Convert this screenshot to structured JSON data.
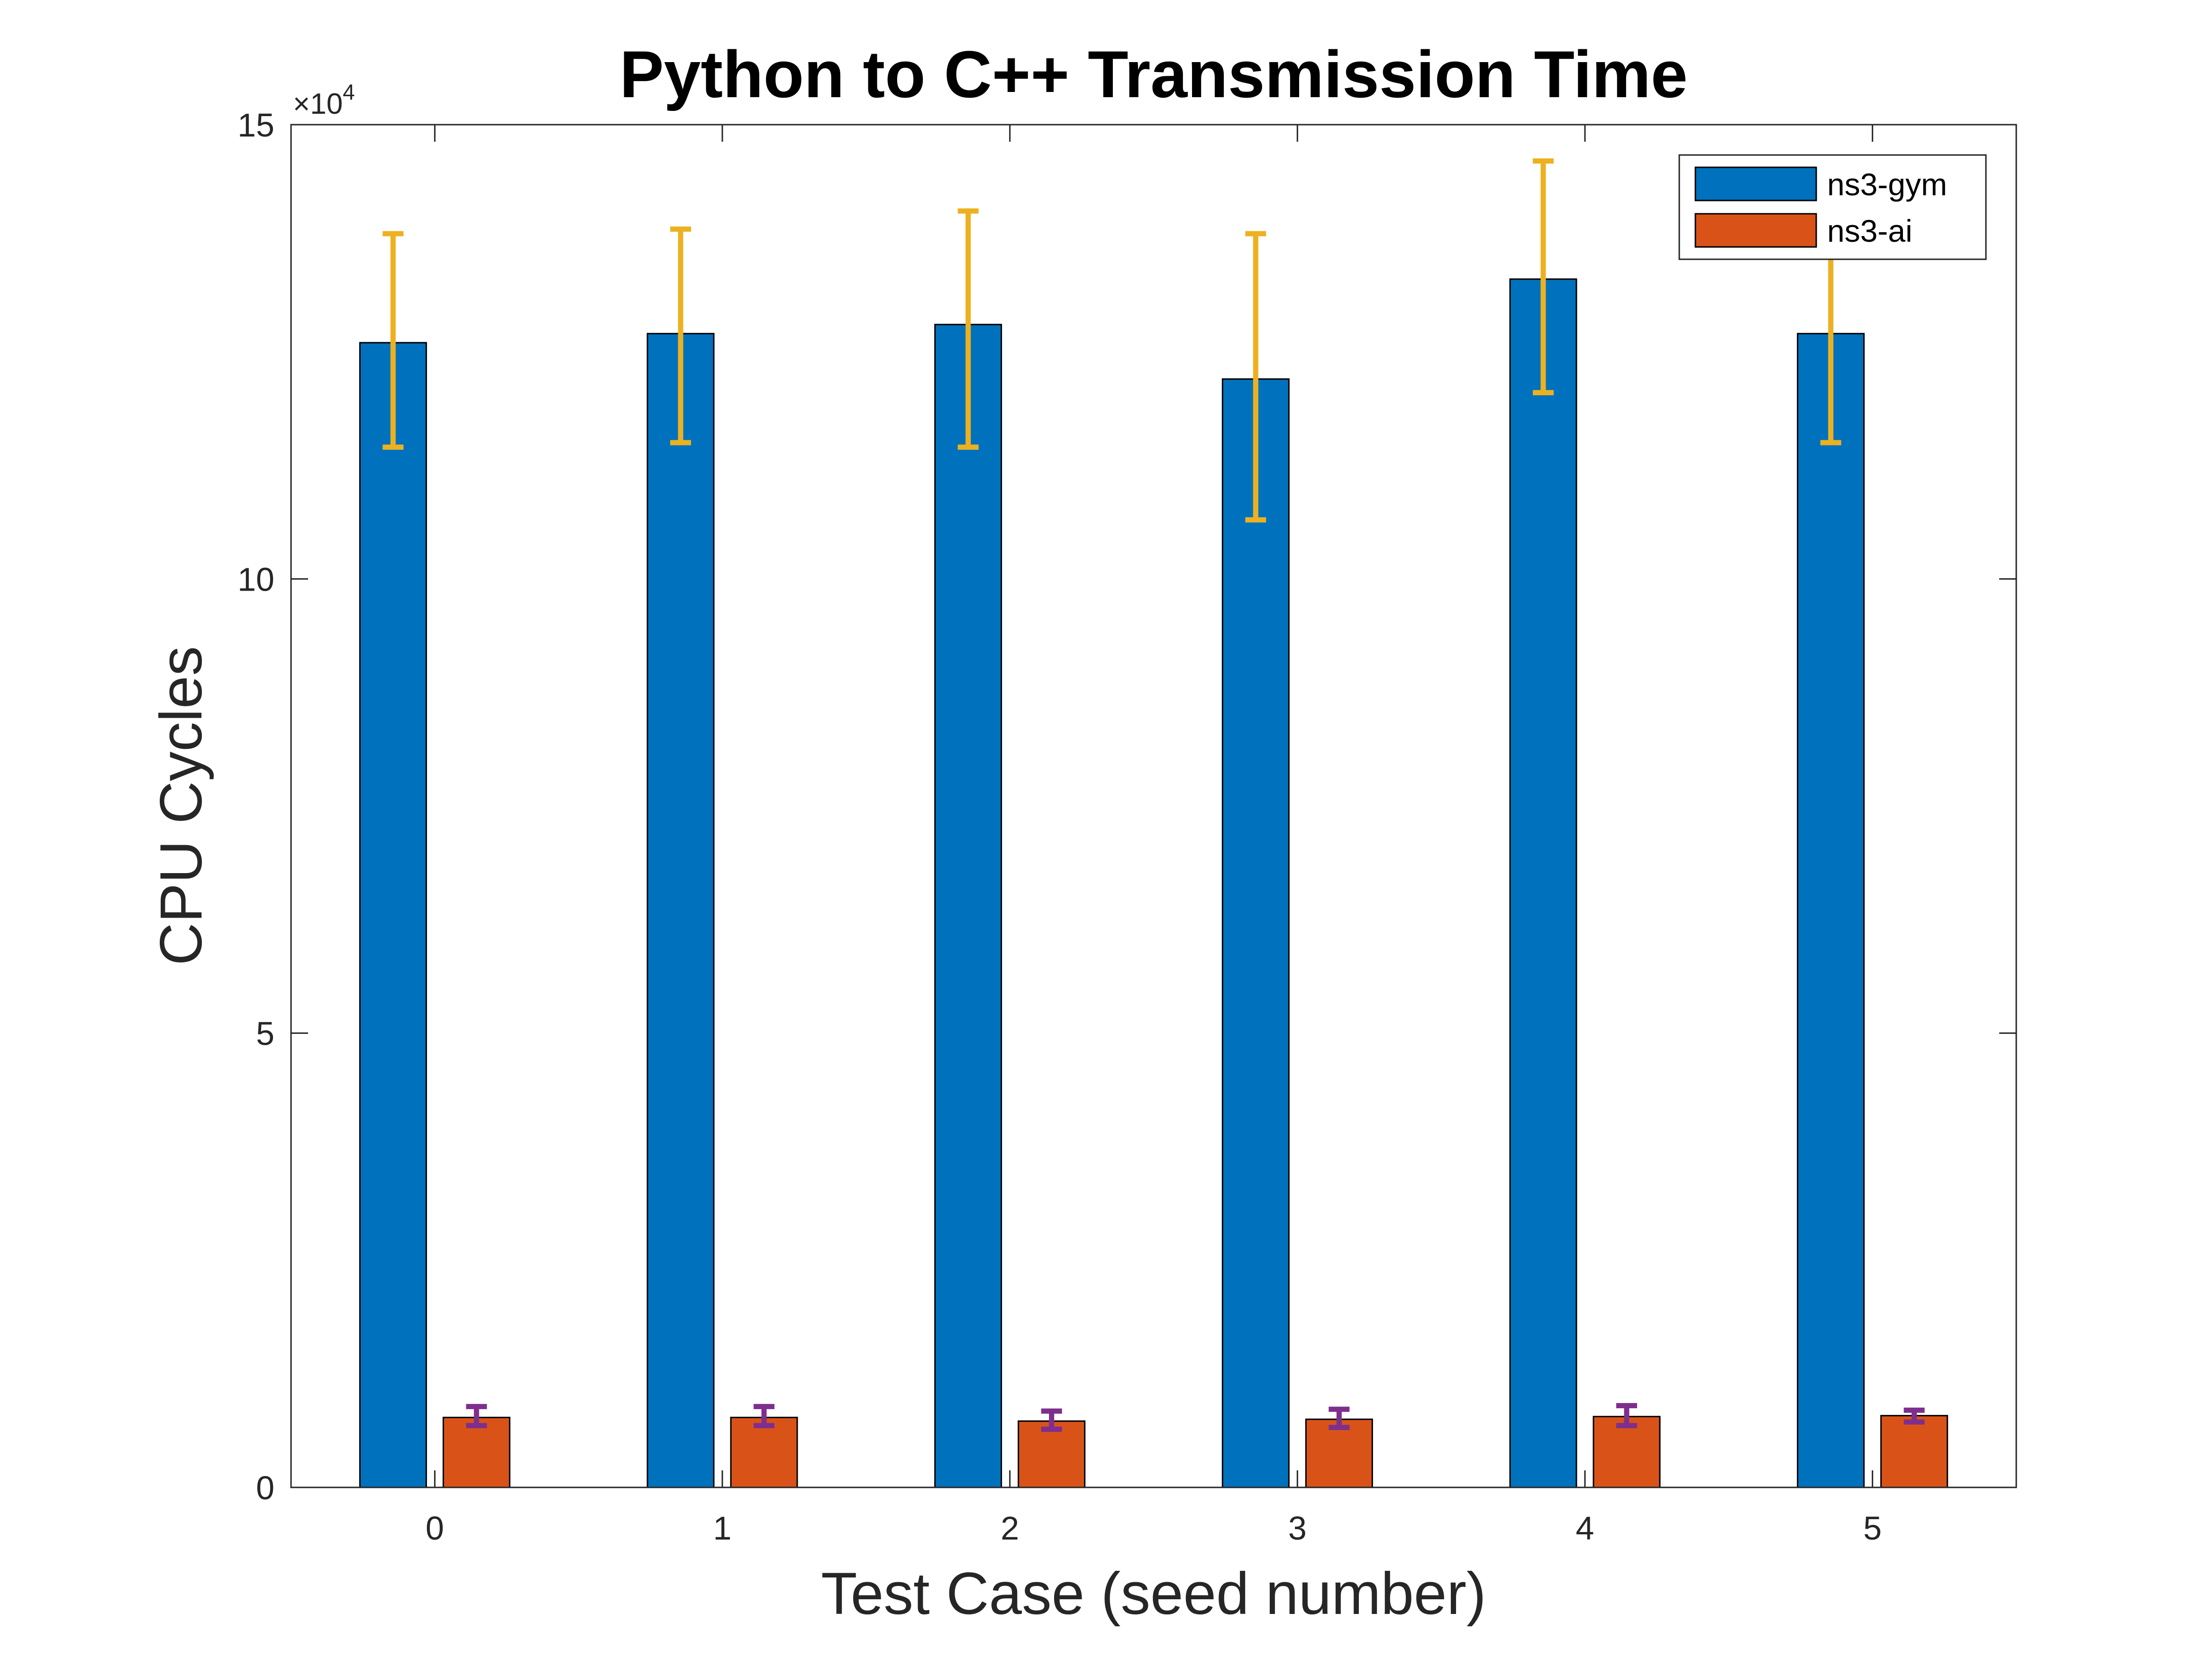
{
  "chart_data": {
    "type": "bar",
    "title": "Python to C++ Transmission Time",
    "xlabel": "Test Case (seed number)",
    "ylabel": "CPU Cycles",
    "exponent_label": "×10",
    "exponent_power": "4",
    "categories": [
      "0",
      "1",
      "2",
      "3",
      "4",
      "5"
    ],
    "ylim": [
      0,
      150000
    ],
    "yticks": [
      0,
      50000,
      100000,
      150000
    ],
    "ytick_labels": [
      "0",
      "5",
      "10",
      "15"
    ],
    "grid": false,
    "legend_position": "top-right",
    "series": [
      {
        "name": "ns3-gym",
        "color": "#0072BD",
        "error_color": "#EDB120",
        "values": [
          126000,
          127000,
          128000,
          122000,
          133000,
          127000
        ],
        "error_low": [
          114500,
          115000,
          114500,
          106500,
          120500,
          115000
        ],
        "error_high": [
          138000,
          138500,
          140500,
          138000,
          146000,
          136500
        ]
      },
      {
        "name": "ns3-ai",
        "color": "#D95319",
        "error_color": "#7E2F8E",
        "values": [
          7700,
          7700,
          7300,
          7500,
          7800,
          7900
        ],
        "error_low": [
          6800,
          6800,
          6400,
          6600,
          6800,
          7200
        ],
        "error_high": [
          8900,
          8900,
          8400,
          8600,
          9000,
          8500
        ]
      }
    ]
  }
}
